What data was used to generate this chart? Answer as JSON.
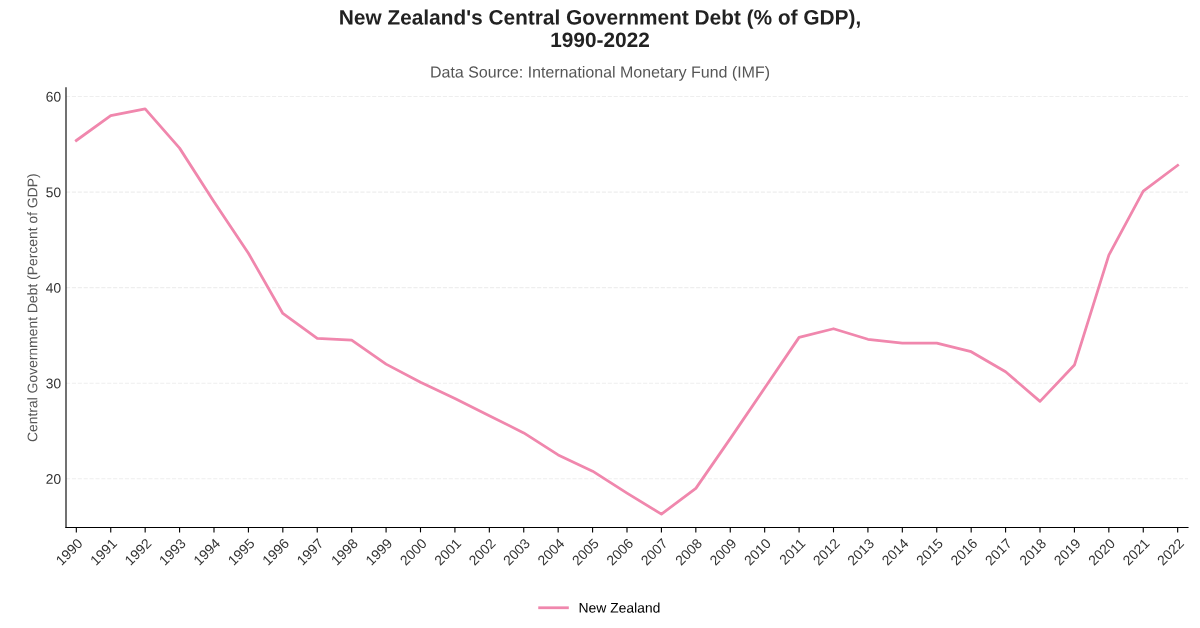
{
  "chart_data": {
    "type": "line",
    "title": "New Zealand's Central Government Debt (% of GDP),\n1990-2022",
    "subtitle": "Data Source: International Monetary Fund (IMF)",
    "ylabel": "Central Government Debt (Percent of GDP)",
    "categories": [
      "1990",
      "1991",
      "1992",
      "1993",
      "1994",
      "1995",
      "1996",
      "1997",
      "1998",
      "1999",
      "2000",
      "2001",
      "2002",
      "2003",
      "2004",
      "2005",
      "2006",
      "2007",
      "2008",
      "2009",
      "2010",
      "2011",
      "2012",
      "2013",
      "2014",
      "2015",
      "2016",
      "2017",
      "2018",
      "2019",
      "2020",
      "2021",
      "2022"
    ],
    "series": [
      {
        "name": "New Zealand",
        "color": "#f087ad",
        "values": [
          55.4,
          58.0,
          58.7,
          54.6,
          49.0,
          43.6,
          37.3,
          34.7,
          34.5,
          32.0,
          30.1,
          28.4,
          26.6,
          24.8,
          22.5,
          20.8,
          18.5,
          16.3,
          19.0,
          24.2,
          29.5,
          34.8,
          35.7,
          34.6,
          34.2,
          34.2,
          33.3,
          31.2,
          28.1,
          31.9,
          43.4,
          50.1,
          52.8
        ]
      }
    ],
    "ylim": [
      14.9,
      60.9
    ],
    "yticks": [
      20,
      30,
      40,
      50,
      60
    ],
    "grid": "y",
    "legend": "bottom",
    "marker": "none",
    "line_style": "solid"
  }
}
